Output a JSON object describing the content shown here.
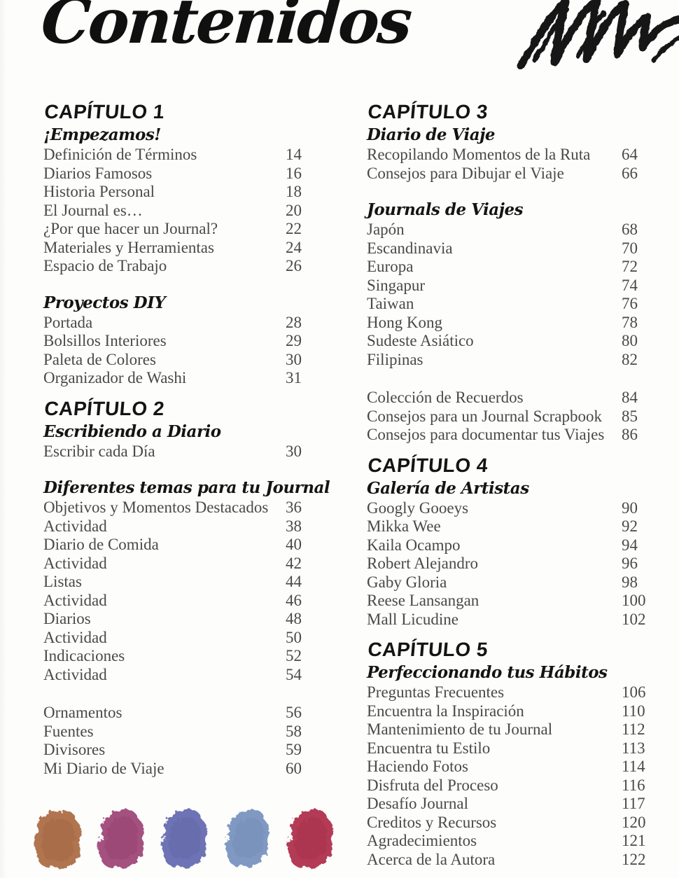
{
  "title": "Contenidos",
  "columns": [
    {
      "blocks": [
        {
          "chapter": "CAPÍTULO 1",
          "subtitle": "¡Empezamos!",
          "entries": [
            {
              "label": "Definición de Términos",
              "page": "14"
            },
            {
              "label": "Diarios Famosos",
              "page": "16"
            },
            {
              "label": "Historia Personal",
              "page": "18"
            },
            {
              "label": "El Journal es…",
              "page": "20"
            },
            {
              "label": "¿Por que hacer un Journal?",
              "page": "22"
            },
            {
              "label": "Materiales y Herramientas",
              "page": "24"
            },
            {
              "label": "Espacio de Trabajo",
              "page": "26"
            }
          ]
        },
        {
          "subtitle": "Proyectos DIY",
          "entries": [
            {
              "label": "Portada",
              "page": "28"
            },
            {
              "label": "Bolsillos Interiores",
              "page": "29"
            },
            {
              "label": "Paleta de Colores",
              "page": "30"
            },
            {
              "label": "Organizador de Washi",
              "page": "31"
            }
          ]
        },
        {
          "chapter": "CAPÍTULO 2",
          "subtitle": "Escribiendo a Diario",
          "entries": [
            {
              "label": "Escribir cada Día",
              "page": "30"
            }
          ]
        },
        {
          "subtitle": "Diferentes temas para tu Journal",
          "entries": [
            {
              "label": "Objetivos y Momentos Destacados",
              "page": "36"
            },
            {
              "label": "Actividad",
              "page": "38"
            },
            {
              "label": "Diario de Comida",
              "page": "40"
            },
            {
              "label": "Actividad",
              "page": "42"
            },
            {
              "label": "Listas",
              "page": "44"
            },
            {
              "label": "Actividad",
              "page": "46"
            },
            {
              "label": "Diarios",
              "page": "48"
            },
            {
              "label": "Actividad",
              "page": "50"
            },
            {
              "label": "Indicaciones",
              "page": "52"
            },
            {
              "label": "Actividad",
              "page": "54"
            }
          ]
        },
        {
          "entries": [
            {
              "label": "Ornamentos",
              "page": "56"
            },
            {
              "label": "Fuentes",
              "page": "58"
            },
            {
              "label": "Divisores",
              "page": "59"
            },
            {
              "label": "Mi Diario de Viaje",
              "page": "60"
            }
          ]
        }
      ]
    },
    {
      "blocks": [
        {
          "chapter": "CAPÍTULO 3",
          "subtitle": "Diario de Viaje",
          "entries": [
            {
              "label": "Recopilando Momentos de la Ruta",
              "page": "64"
            },
            {
              "label": "Consejos para Dibujar el Viaje",
              "page": "66"
            }
          ]
        },
        {
          "subtitle": "Journals de Viajes",
          "entries": [
            {
              "label": "Japón",
              "page": "68"
            },
            {
              "label": "Escandinavia",
              "page": "70"
            },
            {
              "label": "Europa",
              "page": "72"
            },
            {
              "label": "Singapur",
              "page": "74"
            },
            {
              "label": "Taiwan",
              "page": "76"
            },
            {
              "label": "Hong Kong",
              "page": "78"
            },
            {
              "label": "Sudeste Asiático",
              "page": "80"
            },
            {
              "label": "Filipinas",
              "page": "82"
            }
          ]
        },
        {
          "entries": [
            {
              "label": "Colección de Recuerdos",
              "page": "84"
            },
            {
              "label": "Consejos para un Journal Scrapbook",
              "page": "85"
            },
            {
              "label": "Consejos para documentar tus Viajes",
              "page": "86"
            }
          ]
        },
        {
          "chapter": "CAPÍTULO 4",
          "subtitle": "Galería de Artistas",
          "entries": [
            {
              "label": "Googly Gooeys",
              "page": "90"
            },
            {
              "label": "Mikka Wee",
              "page": "92"
            },
            {
              "label": "Kaila Ocampo",
              "page": "94"
            },
            {
              "label": "Robert Alejandro",
              "page": "96"
            },
            {
              "label": "Gaby Gloria",
              "page": "98"
            },
            {
              "label": "Reese Lansangan",
              "page": "100"
            },
            {
              "label": "Mall Licudine",
              "page": "102"
            }
          ]
        },
        {
          "chapter": "CAPÍTULO 5",
          "subtitle": "Perfeccionando tus Hábitos",
          "entries": [
            {
              "label": "Preguntas Frecuentes",
              "page": "106"
            },
            {
              "label": "Encuentra la Inspiración",
              "page": "110"
            },
            {
              "label": "Mantenimiento de tu Journal",
              "page": "112"
            },
            {
              "label": "Encuentra tu Estilo",
              "page": "113"
            },
            {
              "label": "Haciendo Fotos",
              "page": "114"
            },
            {
              "label": "Disfruta del Proceso",
              "page": "116"
            },
            {
              "label": "Desafío Journal",
              "page": "117"
            },
            {
              "label": "Creditos y Recursos",
              "page": "120"
            },
            {
              "label": "Agradecimientos",
              "page": "121"
            },
            {
              "label": "Acerca de la Autora",
              "page": "122"
            }
          ]
        }
      ]
    }
  ],
  "decorations": {
    "scribble_color": "#161616",
    "swatches": [
      {
        "name": "terracotta-paint-swatch",
        "color": "#b0744f",
        "shade": "#9c5f3c"
      },
      {
        "name": "berry-pink-paint-swatch",
        "color": "#a45180",
        "shade": "#8e3a68"
      },
      {
        "name": "periwinkle-paint-swatch",
        "color": "#6d73b4",
        "shade": "#595f9e"
      },
      {
        "name": "slate-blue-paint-swatch",
        "color": "#7f99c2",
        "shade": "#6a84ad"
      },
      {
        "name": "crimson-paint-swatch",
        "color": "#b43a55",
        "shade": "#9d2c45"
      }
    ]
  }
}
